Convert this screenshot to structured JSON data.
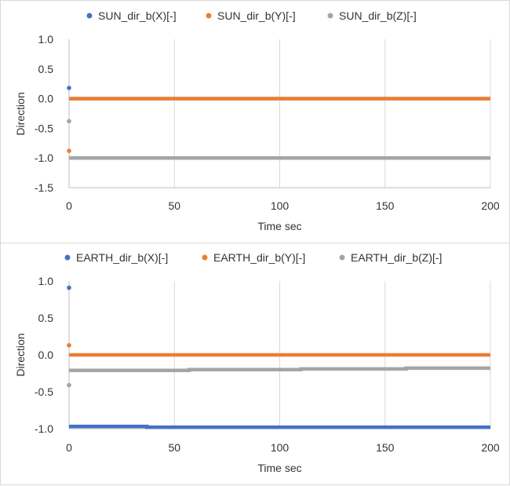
{
  "chart_data": [
    {
      "type": "scatter",
      "xlabel": "Time sec",
      "ylabel": "Direction",
      "xlim": [
        0,
        200
      ],
      "ylim": [
        -1.5,
        1.0
      ],
      "xticks": [
        0,
        50,
        100,
        150,
        200
      ],
      "xtick_labels": [
        "0",
        "50",
        "100",
        "150",
        "200"
      ],
      "yticks": [
        1.0,
        0.5,
        0.0,
        -0.5,
        -1.0,
        -1.5
      ],
      "ytick_labels": [
        "1.0",
        "0.5",
        "0.0",
        "-0.5",
        "-1.0",
        "-1.5"
      ],
      "grid": "vertical",
      "legend": "top",
      "series": [
        {
          "name": "SUN_dir_b(X)[-]",
          "color": "#4472c4",
          "initial": [
            [
              0,
              0.18
            ]
          ],
          "line": [
            [
              0,
              0.0
            ],
            [
              200,
              0.0
            ]
          ]
        },
        {
          "name": "SUN_dir_b(Y)[-]",
          "color": "#ed7d31",
          "initial": [
            [
              0,
              -0.88
            ]
          ],
          "line": [
            [
              0,
              0.0
            ],
            [
              200,
              0.0
            ]
          ]
        },
        {
          "name": "SUN_dir_b(Z)[-]",
          "color": "#a5a5a5",
          "initial": [
            [
              0,
              -0.38
            ]
          ],
          "line": [
            [
              0,
              -1.0
            ],
            [
              200,
              -1.0
            ]
          ]
        }
      ]
    },
    {
      "type": "scatter",
      "xlabel": "Time sec",
      "ylabel": "Direction",
      "xlim": [
        0,
        200
      ],
      "ylim": [
        -1.0,
        1.0
      ],
      "xticks": [
        0,
        50,
        100,
        150,
        200
      ],
      "xtick_labels": [
        "0",
        "50",
        "100",
        "150",
        "200"
      ],
      "yticks": [
        1.0,
        0.5,
        0.0,
        -0.5,
        -1.0
      ],
      "ytick_labels": [
        "1.0",
        "0.5",
        "0.0",
        "-0.5",
        "-1.0"
      ],
      "grid": "vertical",
      "legend": "top",
      "series": [
        {
          "name": "EARTH_dir_b(X)[-]",
          "color": "#4472c4",
          "initial": [
            [
              0,
              0.91
            ]
          ],
          "line": [
            [
              0,
              -0.97
            ],
            [
              37,
              -0.97
            ],
            [
              37,
              -0.98
            ],
            [
              200,
              -0.98
            ]
          ]
        },
        {
          "name": "EARTH_dir_b(Y)[-]",
          "color": "#ed7d31",
          "initial": [
            [
              0,
              0.13
            ]
          ],
          "line": [
            [
              0,
              0.0
            ],
            [
              200,
              0.0
            ]
          ]
        },
        {
          "name": "EARTH_dir_b(Z)[-]",
          "color": "#a5a5a5",
          "initial": [
            [
              0,
              -0.41
            ]
          ],
          "line": [
            [
              0,
              -0.21
            ],
            [
              57,
              -0.21
            ],
            [
              57,
              -0.2
            ],
            [
              110,
              -0.2
            ],
            [
              110,
              -0.19
            ],
            [
              160,
              -0.19
            ],
            [
              160,
              -0.18
            ],
            [
              200,
              -0.18
            ]
          ]
        }
      ]
    }
  ]
}
